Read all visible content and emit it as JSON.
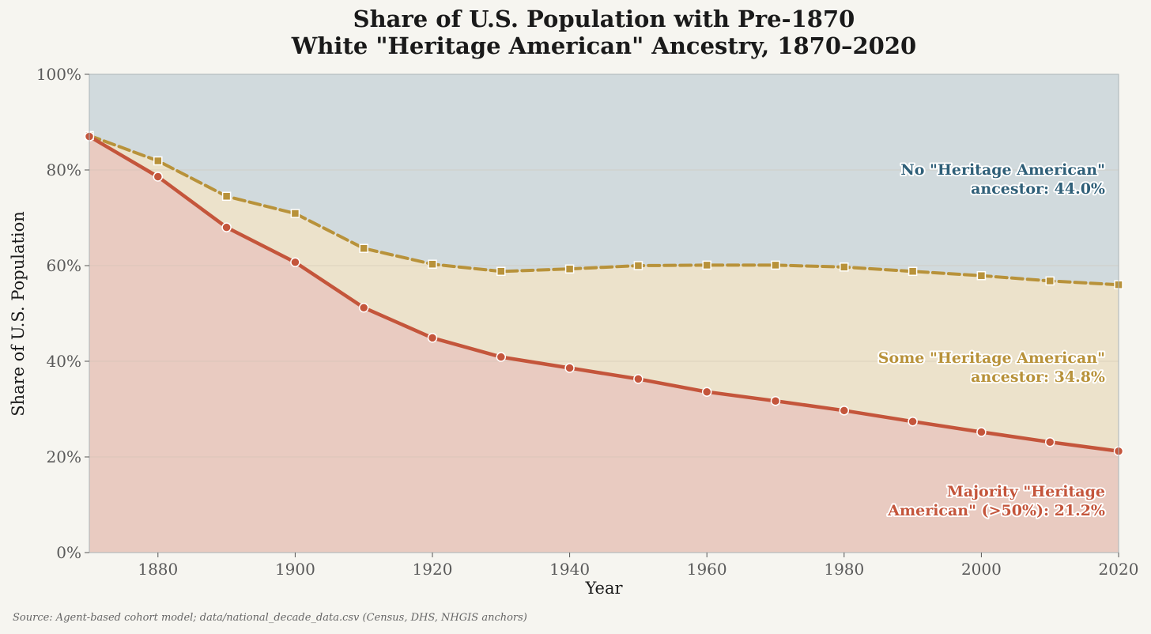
{
  "page": {
    "background": "#f6f5f0"
  },
  "chart_data": {
    "type": "area",
    "title_line1": "Share of U.S. Population with Pre-1870",
    "title_line2": "White \"Heritage American\" Ancestry, 1870–2020",
    "xlabel": "Year",
    "ylabel": "Share of U.S. Population",
    "xlim": [
      1870,
      2020
    ],
    "ylim": [
      0,
      100
    ],
    "x_ticks": [
      1880,
      1900,
      1920,
      1940,
      1960,
      1980,
      2000,
      2020
    ],
    "y_ticks": [
      0,
      20,
      40,
      60,
      80,
      100
    ],
    "y_tick_labels": [
      "0%",
      "20%",
      "40%",
      "60%",
      "80%",
      "100%"
    ],
    "grid": "horizontal, faint",
    "x": [
      1870,
      1880,
      1890,
      1900,
      1910,
      1920,
      1930,
      1940,
      1950,
      1960,
      1970,
      1980,
      1990,
      2000,
      2010,
      2020
    ],
    "series": [
      {
        "key": "majority",
        "values": [
          87.0,
          78.6,
          68.0,
          60.7,
          51.2,
          44.9,
          40.9,
          38.6,
          36.3,
          33.6,
          31.7,
          29.7,
          27.4,
          25.2,
          23.1,
          21.2
        ],
        "line_color": "#c4553b",
        "fill_color": "#e9cbc1",
        "line_style": "solid",
        "marker": "circle"
      },
      {
        "key": "any",
        "values": [
          87.2,
          81.9,
          74.5,
          70.9,
          63.6,
          60.3,
          58.8,
          59.3,
          60.0,
          60.1,
          60.1,
          59.7,
          58.8,
          57.9,
          56.8,
          56.0
        ],
        "line_color": "#b8923a",
        "fill_color": "#ece2cb",
        "line_style": "dashed",
        "marker": "square"
      }
    ],
    "top_fill_color": "#d1dadd",
    "annotations": {
      "none_line1": "No \"Heritage American\"",
      "none_line2": "ancestor: 44.0%",
      "none_color": "#2f5f78",
      "some_line1": "Some \"Heritage American\"",
      "some_line2": "ancestor: 34.8%",
      "some_color": "#b8923a",
      "majority_line1": "Majority \"Heritage",
      "majority_line2": "American\" (>50%): 21.2%",
      "majority_color": "#c4553b"
    },
    "source": "Source: Agent-based cohort model; data/national_decade_data.csv (Census, DHS, NHGIS anchors)"
  }
}
